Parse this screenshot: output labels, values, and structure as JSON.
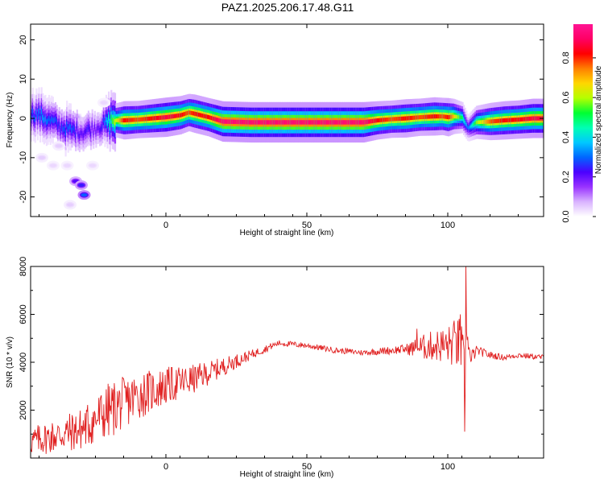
{
  "title": "PAZ1.2025.206.17.48.G11",
  "colormap": [
    "#ffffff",
    "#d9b3ff",
    "#9933ff",
    "#4b00ff",
    "#0066ff",
    "#00c8ff",
    "#00ffb4",
    "#00ff32",
    "#b4ff00",
    "#ffd700",
    "#ff7f00",
    "#ff0000",
    "#ff0064",
    "#ff1493"
  ],
  "colorbar": {
    "label": "Normalized spectral amplitude",
    "ticks": [
      "0.0",
      "0.2",
      "0.4",
      "0.6",
      "0.8"
    ],
    "tick_values": [
      0.0,
      0.2,
      0.4,
      0.6,
      0.8
    ]
  },
  "chart_data": [
    {
      "type": "heatmap",
      "xlabel": "Height of straight line (km)",
      "ylabel": "Frequency (Hz)",
      "xlim": [
        -48,
        134
      ],
      "ylim": [
        -25,
        24
      ],
      "xticks": [
        0,
        50,
        100
      ],
      "yticks": [
        20,
        10,
        0,
        -10,
        -20
      ],
      "ridge": {
        "x": [
          -46,
          -44,
          -42,
          -40,
          -38,
          -36,
          -34,
          -32,
          -30,
          -28,
          -26,
          -24,
          -22,
          -20,
          -15,
          -10,
          -5,
          0,
          5,
          8,
          10,
          15,
          20,
          30,
          40,
          50,
          60,
          70,
          75,
          80,
          85,
          90,
          95,
          98,
          100,
          102,
          105,
          107,
          110,
          115,
          120,
          125,
          130,
          134
        ],
        "y": [
          1.0,
          0.5,
          -0.5,
          -1.0,
          -2.0,
          -2.5,
          -3.0,
          -3.0,
          -3.5,
          -3.0,
          -2.5,
          -2.0,
          -1.5,
          -0.5,
          -0.5,
          -0.3,
          0.0,
          0.3,
          0.8,
          1.5,
          1.2,
          0.3,
          -0.8,
          -1.0,
          -1.0,
          -1.0,
          -1.0,
          -1.0,
          -0.5,
          -0.2,
          0.0,
          0.3,
          0.5,
          0.5,
          0.3,
          0.5,
          0.2,
          -2.5,
          -1.0,
          -0.8,
          -0.5,
          -0.3,
          0.0,
          0.0
        ],
        "amp": [
          0.3,
          0.35,
          0.3,
          0.3,
          0.25,
          0.3,
          0.3,
          0.25,
          0.2,
          0.25,
          0.2,
          0.2,
          0.3,
          0.5,
          0.85,
          0.8,
          0.85,
          0.9,
          0.85,
          0.8,
          0.85,
          0.85,
          0.95,
          0.95,
          0.95,
          0.95,
          0.95,
          0.95,
          0.85,
          0.8,
          0.85,
          0.8,
          0.85,
          0.8,
          0.85,
          0.7,
          0.5,
          0.3,
          0.6,
          0.8,
          0.85,
          0.85,
          0.9,
          0.9
        ]
      },
      "blobs": [
        {
          "x": -32,
          "y": -16,
          "amp": 0.22
        },
        {
          "x": -30,
          "y": -17,
          "amp": 0.25
        },
        {
          "x": -29,
          "y": -19.5,
          "amp": 0.3
        },
        {
          "x": -38,
          "y": -7,
          "amp": 0.05
        },
        {
          "x": -44,
          "y": -10,
          "amp": 0.05
        },
        {
          "x": -40,
          "y": -12,
          "amp": 0.04
        },
        {
          "x": -35,
          "y": -12,
          "amp": 0.04
        },
        {
          "x": -22,
          "y": 4,
          "amp": 0.04
        },
        {
          "x": -26,
          "y": -12,
          "amp": 0.04
        },
        {
          "x": -34,
          "y": -22,
          "amp": 0.05
        }
      ]
    },
    {
      "type": "line",
      "xlabel": "Height of straight line (km)",
      "ylabel": "SNR (10 * v/v)",
      "xlim": [
        -48,
        134
      ],
      "ylim": [
        0,
        8000
      ],
      "xticks": [
        0,
        50,
        100
      ],
      "yticks": [
        2000,
        4000,
        6000,
        8000
      ],
      "line_color": "#e02020",
      "trend": {
        "x": [
          -48,
          -40,
          -30,
          -20,
          -10,
          0,
          10,
          20,
          30,
          40,
          50,
          60,
          70,
          80,
          90,
          95,
          100,
          103,
          105,
          106,
          107,
          108,
          110,
          115,
          120,
          125,
          134
        ],
        "y": [
          700,
          900,
          1200,
          2000,
          2600,
          3000,
          3300,
          3800,
          4300,
          4800,
          4700,
          4500,
          4400,
          4500,
          4600,
          4700,
          4700,
          4800,
          4600,
          3500,
          5500,
          4000,
          4500,
          4300,
          4200,
          4300,
          4200
        ]
      },
      "noise": {
        "x": [
          -48,
          -30,
          -20,
          0,
          20,
          30,
          40,
          70,
          85,
          90,
          100,
          104,
          110,
          120,
          134
        ],
        "amp": [
          600,
          900,
          1200,
          800,
          400,
          200,
          120,
          120,
          200,
          500,
          800,
          1200,
          200,
          120,
          120
        ]
      },
      "spikes": [
        {
          "x": 106.5,
          "y": 8000
        },
        {
          "x": 106.0,
          "y": 1100
        },
        {
          "x": 104.5,
          "y": 6000
        },
        {
          "x": 103.0,
          "y": 5200
        },
        {
          "x": 89.0,
          "y": 5400
        }
      ]
    }
  ]
}
